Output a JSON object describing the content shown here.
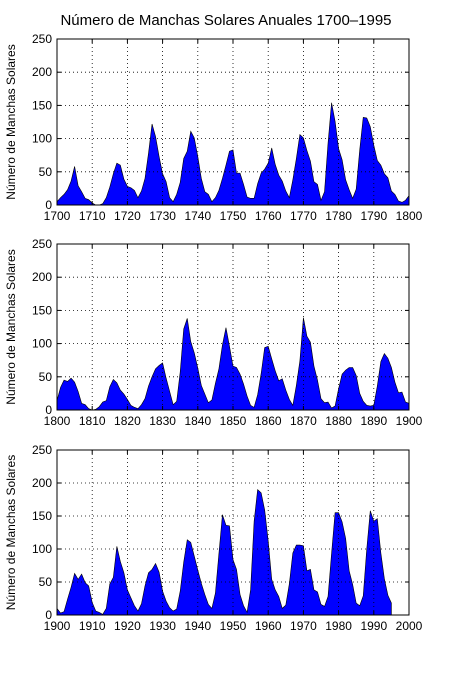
{
  "chart_data": {
    "type": "area",
    "title": "Número de Manchas Solares Anuales 1700–1995",
    "fill_color": "#0000ff",
    "grid": true,
    "grid_style": "dotted",
    "panels": [
      {
        "ylabel": "Número de Manchas Solares",
        "xlim": [
          1700,
          1800
        ],
        "ylim": [
          0,
          250
        ],
        "xticks": [
          1700,
          1710,
          1720,
          1730,
          1740,
          1750,
          1760,
          1770,
          1780,
          1790,
          1800
        ],
        "yticks": [
          0,
          50,
          100,
          150,
          200,
          250
        ],
        "x": [
          1700,
          1701,
          1702,
          1703,
          1704,
          1705,
          1706,
          1707,
          1708,
          1709,
          1710,
          1711,
          1712,
          1713,
          1714,
          1715,
          1716,
          1717,
          1718,
          1719,
          1720,
          1721,
          1722,
          1723,
          1724,
          1725,
          1726,
          1727,
          1728,
          1729,
          1730,
          1731,
          1732,
          1733,
          1734,
          1735,
          1736,
          1737,
          1738,
          1739,
          1740,
          1741,
          1742,
          1743,
          1744,
          1745,
          1746,
          1747,
          1748,
          1749,
          1750,
          1751,
          1752,
          1753,
          1754,
          1755,
          1756,
          1757,
          1758,
          1759,
          1760,
          1761,
          1762,
          1763,
          1764,
          1765,
          1766,
          1767,
          1768,
          1769,
          1770,
          1771,
          1772,
          1773,
          1774,
          1775,
          1776,
          1777,
          1778,
          1779,
          1780,
          1781,
          1782,
          1783,
          1784,
          1785,
          1786,
          1787,
          1788,
          1789,
          1790,
          1791,
          1792,
          1793,
          1794,
          1795,
          1796,
          1797,
          1798,
          1799,
          1800
        ],
        "y": [
          5,
          11,
          16,
          23,
          36,
          58,
          29,
          20,
          10,
          8,
          3,
          0,
          0,
          2,
          11,
          27,
          47,
          63,
          60,
          39,
          28,
          26,
          22,
          11,
          21,
          40,
          78,
          122,
          103,
          73,
          47,
          35,
          11,
          5,
          16,
          34,
          70,
          81,
          111,
          101,
          73,
          40,
          20,
          16,
          5,
          11,
          22,
          40,
          60,
          81,
          83,
          48,
          48,
          31,
          12,
          10,
          10,
          32,
          48,
          54,
          63,
          86,
          61,
          45,
          36,
          21,
          11,
          38,
          70,
          106,
          101,
          82,
          66,
          35,
          31,
          7,
          20,
          93,
          154,
          126,
          85,
          68,
          38,
          23,
          10,
          24,
          83,
          132,
          131,
          118,
          90,
          67,
          60,
          47,
          41,
          21,
          16,
          6,
          4,
          7,
          14
        ]
      },
      {
        "ylabel": "Número de Manchas Solares",
        "xlim": [
          1800,
          1900
        ],
        "ylim": [
          0,
          250
        ],
        "xticks": [
          1800,
          1810,
          1820,
          1830,
          1840,
          1850,
          1860,
          1870,
          1880,
          1890,
          1900
        ],
        "yticks": [
          0,
          50,
          100,
          150,
          200,
          250
        ],
        "x": [
          1800,
          1801,
          1802,
          1803,
          1804,
          1805,
          1806,
          1807,
          1808,
          1809,
          1810,
          1811,
          1812,
          1813,
          1814,
          1815,
          1816,
          1817,
          1818,
          1819,
          1820,
          1821,
          1822,
          1823,
          1824,
          1825,
          1826,
          1827,
          1828,
          1829,
          1830,
          1831,
          1832,
          1833,
          1834,
          1835,
          1836,
          1837,
          1838,
          1839,
          1840,
          1841,
          1842,
          1843,
          1844,
          1845,
          1846,
          1847,
          1848,
          1849,
          1850,
          1851,
          1852,
          1853,
          1854,
          1855,
          1856,
          1857,
          1858,
          1859,
          1860,
          1861,
          1862,
          1863,
          1864,
          1865,
          1866,
          1867,
          1868,
          1869,
          1870,
          1871,
          1872,
          1873,
          1874,
          1875,
          1876,
          1877,
          1878,
          1879,
          1880,
          1881,
          1882,
          1883,
          1884,
          1885,
          1886,
          1887,
          1888,
          1889,
          1890,
          1891,
          1892,
          1893,
          1894,
          1895,
          1896,
          1897,
          1898,
          1899,
          1900
        ],
        "y": [
          14,
          34,
          45,
          43,
          48,
          42,
          28,
          10,
          8,
          2,
          0,
          1,
          5,
          12,
          14,
          35,
          46,
          41,
          30,
          24,
          16,
          7,
          4,
          2,
          8,
          17,
          36,
          50,
          62,
          67,
          71,
          48,
          28,
          8,
          13,
          57,
          122,
          138,
          103,
          86,
          63,
          37,
          24,
          11,
          15,
          40,
          62,
          98,
          124,
          96,
          66,
          64,
          54,
          39,
          21,
          7,
          4,
          23,
          55,
          94,
          96,
          77,
          59,
          44,
          47,
          30,
          16,
          7,
          37,
          74,
          139,
          111,
          102,
          66,
          45,
          17,
          11,
          12,
          3,
          6,
          32,
          54,
          60,
          64,
          64,
          52,
          25,
          13,
          7,
          6,
          7,
          36,
          73,
          85,
          78,
          64,
          42,
          26,
          27,
          12,
          10
        ]
      },
      {
        "ylabel": "Número de Manchas Solares",
        "xlim": [
          1900,
          2000
        ],
        "ylim": [
          0,
          250
        ],
        "xticks": [
          1900,
          1910,
          1920,
          1930,
          1940,
          1950,
          1960,
          1970,
          1980,
          1990,
          2000
        ],
        "yticks": [
          0,
          50,
          100,
          150,
          200,
          250
        ],
        "x": [
          1900,
          1901,
          1902,
          1903,
          1904,
          1905,
          1906,
          1907,
          1908,
          1909,
          1910,
          1911,
          1912,
          1913,
          1914,
          1915,
          1916,
          1917,
          1918,
          1919,
          1920,
          1921,
          1922,
          1923,
          1924,
          1925,
          1926,
          1927,
          1928,
          1929,
          1930,
          1931,
          1932,
          1933,
          1934,
          1935,
          1936,
          1937,
          1938,
          1939,
          1940,
          1941,
          1942,
          1943,
          1944,
          1945,
          1946,
          1947,
          1948,
          1949,
          1950,
          1951,
          1952,
          1953,
          1954,
          1955,
          1956,
          1957,
          1958,
          1959,
          1960,
          1961,
          1962,
          1963,
          1964,
          1965,
          1966,
          1967,
          1968,
          1969,
          1970,
          1971,
          1972,
          1973,
          1974,
          1975,
          1976,
          1977,
          1978,
          1979,
          1980,
          1981,
          1982,
          1983,
          1984,
          1985,
          1986,
          1987,
          1988,
          1989,
          1990,
          1991,
          1992,
          1993,
          1994,
          1995
        ],
        "y": [
          10,
          3,
          5,
          24,
          42,
          63,
          54,
          62,
          49,
          44,
          19,
          6,
          4,
          1,
          10,
          47,
          57,
          104,
          81,
          64,
          38,
          26,
          14,
          6,
          17,
          44,
          64,
          69,
          78,
          65,
          36,
          21,
          11,
          6,
          9,
          36,
          80,
          114,
          110,
          89,
          68,
          48,
          31,
          16,
          10,
          33,
          93,
          152,
          136,
          135,
          84,
          69,
          31,
          14,
          4,
          38,
          142,
          190,
          185,
          159,
          112,
          54,
          38,
          28,
          10,
          15,
          47,
          94,
          106,
          106,
          105,
          67,
          69,
          38,
          35,
          16,
          13,
          28,
          93,
          155,
          155,
          141,
          116,
          67,
          46,
          18,
          14,
          29,
          100,
          158,
          142,
          146,
          94,
          55,
          30,
          18
        ]
      }
    ]
  }
}
